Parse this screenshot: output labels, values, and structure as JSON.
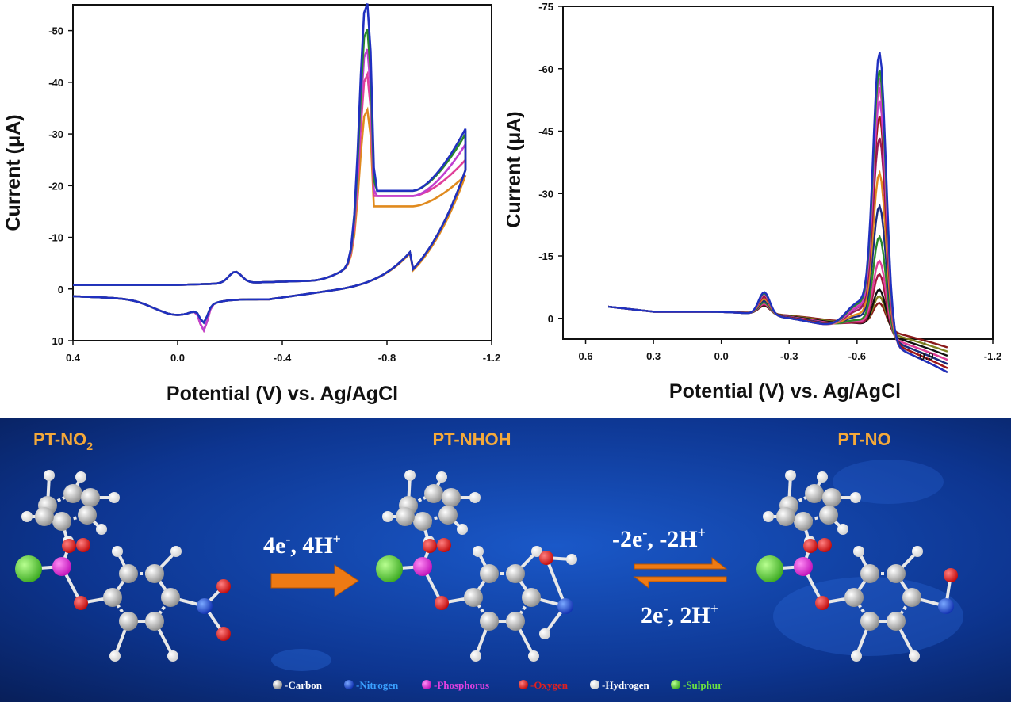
{
  "chart_data": [
    {
      "type": "line",
      "title": "",
      "xlabel": "Potential (V) vs. Ag/AgCl",
      "ylabel": "Current (μA)",
      "xlim": [
        0.4,
        -1.2
      ],
      "ylim": [
        10,
        -55
      ],
      "x_ticks": [
        "0.4",
        "0.0",
        "-0.4",
        "-0.8",
        "-1.2"
      ],
      "x_tick_values": [
        0.4,
        0.0,
        -0.4,
        -0.8,
        -1.2
      ],
      "y_ticks": [
        "-50",
        "-40",
        "-30",
        "-20",
        "-10",
        "0",
        "10"
      ],
      "y_tick_values": [
        -50,
        -40,
        -30,
        -20,
        -10,
        0,
        10
      ],
      "grid": false,
      "legend": "none",
      "series": [
        {
          "color": "#e08a1e",
          "peak": -28,
          "end_upper": -22,
          "end_lower": -24,
          "valley": -16
        },
        {
          "color": "#e0409a",
          "peak": -35,
          "end_upper": -25,
          "end_lower": -25,
          "valley": -18
        },
        {
          "color": "#c040d0",
          "peak": -40,
          "end_upper": -28,
          "end_lower": -25,
          "valley": -18
        },
        {
          "color": "#2a8a2a",
          "peak": -44,
          "end_upper": -30,
          "end_lower": -25,
          "valley": -19
        },
        {
          "color": "#2030c0",
          "peak": -49,
          "end_upper": -31,
          "end_lower": -25,
          "valley": -19
        }
      ]
    },
    {
      "type": "line",
      "title": "",
      "xlabel": "Potential (V) vs. Ag/AgCl",
      "ylabel": "Current (μA)",
      "xlim": [
        0.7,
        -1.2
      ],
      "ylim": [
        5,
        -75
      ],
      "x_ticks": [
        "0.6",
        "0.3",
        "0.0",
        "-0.3",
        "-0.6",
        "-0.9",
        "-1.2"
      ],
      "x_tick_values": [
        0.6,
        0.3,
        0.0,
        -0.3,
        -0.6,
        -0.9,
        -1.2
      ],
      "y_ticks": [
        "-75",
        "-60",
        "-45",
        "-30",
        "-15",
        "0"
      ],
      "y_tick_values": [
        -75,
        -60,
        -45,
        -30,
        -15,
        0
      ],
      "grid": false,
      "legend": "none",
      "series": [
        {
          "color": "#8a1a1a",
          "peak": -6,
          "end": -7
        },
        {
          "color": "#808020",
          "peak": -8,
          "end": -8
        },
        {
          "color": "#111111",
          "peak": -10,
          "end": -9
        },
        {
          "color": "#a01840",
          "peak": -14,
          "end": -10
        },
        {
          "color": "#e0409a",
          "peak": -17,
          "end": -10
        },
        {
          "color": "#2a8a2a",
          "peak": -23,
          "end": -11
        },
        {
          "color": "#1a2a80",
          "peak": -30,
          "end": -11
        },
        {
          "color": "#e08a1e",
          "peak": -38,
          "end": -12
        },
        {
          "color": "#9a1a5a",
          "peak": -46,
          "end": -12
        },
        {
          "color": "#a01818",
          "peak": -51,
          "end": -12
        },
        {
          "color": "#c040d0",
          "peak": -55,
          "end": -13
        },
        {
          "color": "#e040a0",
          "peak": -58,
          "end": -13
        },
        {
          "color": "#d040e0",
          "peak": -60,
          "end": -13
        },
        {
          "color": "#2a8a2a",
          "peak": -62,
          "end": -13
        },
        {
          "color": "#2030c0",
          "peak": -66,
          "end": -13
        }
      ]
    }
  ],
  "scheme": {
    "compounds": [
      "PT-NO",
      "2",
      "PT-NHOH",
      "PT-NO"
    ],
    "forward_arrow": {
      "label": "4e",
      "sup1": "-",
      "mid": ", 4H",
      "sup2": "+"
    },
    "reverse_top": {
      "label": "-2e",
      "sup1": "-",
      "mid": ", -2H",
      "sup2": "+"
    },
    "reverse_bottom": {
      "label": "2e",
      "sup1": "-",
      "mid": ", 2H",
      "sup2": "+"
    },
    "legend": [
      {
        "label": "-Carbon",
        "color": "#cfcfcf",
        "text_color": "#ffffff"
      },
      {
        "label": "-Nitrogen",
        "color": "#2f63d8",
        "text_color": "#3aa0ff"
      },
      {
        "label": "-Phosphorus",
        "color": "#e020d8",
        "text_color": "#e040e0"
      },
      {
        "label": "-Oxygen",
        "color": "#e01818",
        "text_color": "#e02020"
      },
      {
        "label": "-Hydrogen",
        "color": "#ffffff",
        "text_color": "#ffffff"
      },
      {
        "label": "-Sulphur",
        "color": "#5ad83a",
        "text_color": "#6ae040"
      }
    ],
    "colors": {
      "label": "#f4a93a",
      "arrow": "#ee7a14",
      "background": "#0b2a6e"
    }
  }
}
